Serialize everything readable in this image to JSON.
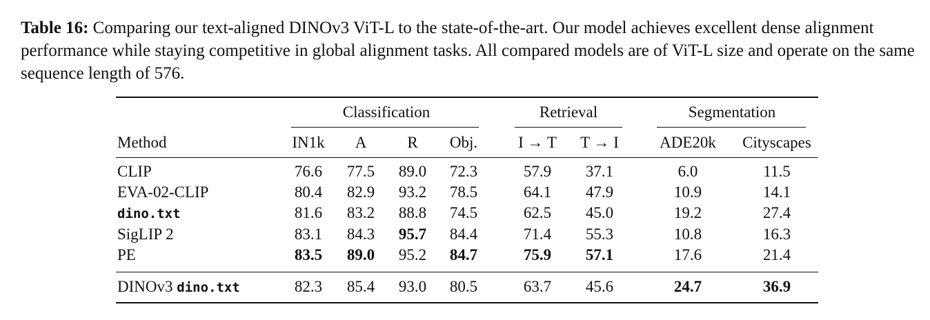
{
  "caption": {
    "label": "Table 16:",
    "text": "Comparing our text-aligned DINOv3 ViT-L to the state-of-the-art. Our model achieves excellent dense alignment performance while staying competitive in global alignment tasks. All compared models are of ViT-L size and operate on the same sequence length of 576."
  },
  "table": {
    "groups": [
      "Classification",
      "Retrieval",
      "Segmentation"
    ],
    "method_header": "Method",
    "columns": [
      "IN1k",
      "A",
      "R",
      "Obj.",
      "I → T",
      "T → I",
      "ADE20k",
      "Cityscapes"
    ],
    "rows": [
      {
        "method": "CLIP",
        "values": [
          "76.6",
          "77.5",
          "89.0",
          "72.3",
          "57.9",
          "37.1",
          "6.0",
          "11.5"
        ]
      },
      {
        "method": "EVA-02-CLIP",
        "values": [
          "80.4",
          "82.9",
          "93.2",
          "78.5",
          "64.1",
          "47.9",
          "10.9",
          "14.1"
        ]
      },
      {
        "method": "dino.txt",
        "values": [
          "81.6",
          "83.2",
          "88.8",
          "74.5",
          "62.5",
          "45.0",
          "19.2",
          "27.4"
        ]
      },
      {
        "method": "SigLIP 2",
        "values": [
          "83.1",
          "84.3",
          "95.7",
          "84.4",
          "71.4",
          "55.3",
          "10.8",
          "16.3"
        ]
      },
      {
        "method": "PE",
        "values": [
          "83.5",
          "89.0",
          "95.2",
          "84.7",
          "75.9",
          "57.1",
          "17.6",
          "21.4"
        ]
      }
    ],
    "final_row": {
      "method_prefix": "DINOv3",
      "method_code": "dino.txt",
      "values": [
        "82.3",
        "85.4",
        "93.0",
        "80.5",
        "63.7",
        "45.6",
        "24.7",
        "36.9"
      ]
    }
  }
}
